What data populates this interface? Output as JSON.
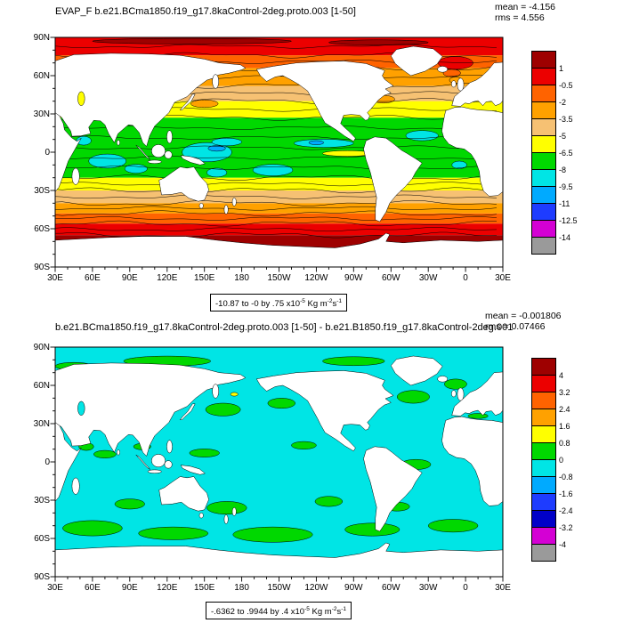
{
  "figure": {
    "background": "#ffffff"
  },
  "chart_data": [
    {
      "type": "filled_contour_map",
      "projection": "cylindrical_equidistant",
      "title": "EVAP_F b.e21.BCma1850.f19_g17.8kaControl-2deg.proto.003 [1-50]",
      "stats": {
        "mean": "mean = -4.156",
        "rms": "rms = 4.556"
      },
      "range_label": {
        "base": "-10.87 to -0 by .75 x10",
        "exp": "-5",
        "unit": " Kg m",
        "unit_exp": "-2",
        "unit2": "s",
        "unit2_exp": "-1"
      },
      "lat_ticks": [
        "90N",
        "60N",
        "30N",
        "0",
        "30S",
        "60S",
        "90S"
      ],
      "lon_ticks": [
        "30E",
        "60E",
        "90E",
        "120E",
        "150E",
        "180",
        "150W",
        "120W",
        "90W",
        "60W",
        "30W",
        "0",
        "30E"
      ],
      "colorbar": {
        "boundary_labels": [
          "1",
          "-0.5",
          "-2",
          "-3.5",
          "-5",
          "-6.5",
          "-8",
          "-9.5",
          "-11",
          "-12.5",
          "-14"
        ],
        "colors": [
          "#9e0000",
          "#ec0000",
          "#ff6300",
          "#ffa100",
          "#f6c173",
          "#ffff00",
          "#00d800",
          "#00e5e5",
          "#00aaff",
          "#1e3cff",
          "#d400d4",
          "#9a9a9a"
        ]
      },
      "field_approx": {
        "note": "zonal-band approximation of filled contours, units x10^-5 Kg m-2 s-1",
        "inland_sea_color": "#ffff00",
        "bands": [
          {
            "lat": [
              90,
              76
            ],
            "color": "#ec0000",
            "value": "-0.5 to 1"
          },
          {
            "lat": [
              76,
              66
            ],
            "color": "#ff6300",
            "value": "-2 to -0.5"
          },
          {
            "lat": [
              66,
              52
            ],
            "color": "#ffa100",
            "value": "-3.5 to -2"
          },
          {
            "lat": [
              52,
              40
            ],
            "color": "#f6c173",
            "value": "-5 to -3.5"
          },
          {
            "lat": [
              40,
              27
            ],
            "color": "#ffff00",
            "value": "-6.5 to -5"
          },
          {
            "lat": [
              27,
              -20
            ],
            "color": "#00d800",
            "value": "-8 to -6.5"
          },
          {
            "lat": [
              -20,
              -30
            ],
            "color": "#ffff00",
            "value": "-6.5 to -5"
          },
          {
            "lat": [
              -30,
              -40
            ],
            "color": "#f6c173",
            "value": "-5 to -3.5"
          },
          {
            "lat": [
              -40,
              -48
            ],
            "color": "#ffa100",
            "value": "-3.5 to -2"
          },
          {
            "lat": [
              -48,
              -56
            ],
            "color": "#ff6300",
            "value": "-2 to -0.5"
          },
          {
            "lat": [
              -56,
              -65
            ],
            "color": "#ec0000",
            "value": "-0.5 to 1"
          },
          {
            "lat": [
              -65,
              -90
            ],
            "color": "#9e0000",
            "value": "0 to 1"
          }
        ],
        "patches": [
          {
            "lon": 140,
            "lat": 87,
            "rlon": 80,
            "rlat": 2.2,
            "color": "#9e0000",
            "value": "0 to 1"
          },
          {
            "lon": 290,
            "lat": 86,
            "rlon": 40,
            "rlat": 2.0,
            "color": "#9e0000",
            "value": "0 to 1"
          },
          {
            "lon": 352,
            "lat": 70,
            "rlon": 14,
            "rlat": 5,
            "color": "#ec0000",
            "value": "-0.5 to 1"
          },
          {
            "lon": 349,
            "lat": 62,
            "rlon": 7,
            "rlat": 3,
            "color": "#ff6300",
            "value": "-2 to -0.5"
          },
          {
            "lon": 352,
            "lat": 56.5,
            "rlon": 5,
            "rlat": 2.5,
            "color": "#ffa100",
            "value": "-3.5 to -2"
          },
          {
            "lon": 150,
            "lat": 38,
            "rlon": 11,
            "rlat": 3,
            "color": "#ffa100",
            "value": "-3.5 to -2"
          },
          {
            "lon": 294,
            "lat": 41.5,
            "rlon": 9,
            "rlat": 3,
            "color": "#ffa100",
            "value": "-3.5 to -2"
          },
          {
            "lon": 152,
            "lat": 0,
            "rlon": 20,
            "rlat": 7.5,
            "color": "#00e5e5",
            "value": "-9.5 to -8"
          },
          {
            "lon": 168,
            "lat": 8,
            "rlon": 12,
            "rlat": 3,
            "color": "#00e5e5",
            "value": "-9.5 to -8"
          },
          {
            "lon": 72,
            "lat": -7,
            "rlon": 15,
            "rlat": 5.5,
            "color": "#00e5e5",
            "value": "-9.5 to -8"
          },
          {
            "lon": 95,
            "lat": -13,
            "rlon": 9,
            "rlat": 3.5,
            "color": "#00e5e5",
            "value": "-9.5 to -8"
          },
          {
            "lon": 53,
            "lat": 9,
            "rlon": 6,
            "rlat": 3.5,
            "color": "#00e5e5",
            "value": "-9.5 to -8"
          },
          {
            "lon": 246,
            "lat": 7,
            "rlon": 24,
            "rlat": 3.2,
            "color": "#00e5e5",
            "value": "-9.5 to -8"
          },
          {
            "lon": 325,
            "lat": 13,
            "rlon": 13,
            "rlat": 4,
            "color": "#00e5e5",
            "value": "-9.5 to -8"
          },
          {
            "lon": 205,
            "lat": -14,
            "rlon": 16,
            "rlat": 4.5,
            "color": "#00e5e5",
            "value": "-9.5 to -8"
          },
          {
            "lon": 160,
            "lat": -16,
            "rlon": 8,
            "rlat": 3.5,
            "color": "#00e5e5",
            "value": "-9.5 to -8"
          },
          {
            "lon": 355,
            "lat": -10,
            "rlon": 6,
            "rlat": 3,
            "color": "#00e5e5",
            "value": "-9.5 to -8"
          },
          {
            "lon": 160,
            "lat": 3,
            "rlon": 7,
            "rlat": 2.2,
            "color": "#00aaff",
            "value": "-11 to -9.5"
          },
          {
            "lon": 240,
            "lat": 7.5,
            "rlon": 6,
            "rlat": 1.6,
            "color": "#00aaff",
            "value": "-11 to -9.5"
          },
          {
            "lon": 265,
            "lat": -1,
            "rlon": 20,
            "rlat": 2.2,
            "color": "#ffff00",
            "value": "-6.5 to -5"
          }
        ]
      }
    },
    {
      "type": "filled_contour_map",
      "projection": "cylindrical_equidistant",
      "title": "b.e21.BCma1850.f19_g17.8kaControl-2deg.proto.003 [1-50] - b.e21.B1850.f19_g17.8kaControl-2deg.001",
      "stats": {
        "mean": "mean = -0.001806",
        "rms": "rms = 0.07466"
      },
      "range_label": {
        "base": "-.6362 to .9944 by .4 x10",
        "exp": "-5",
        "unit": " Kg m",
        "unit_exp": "-2",
        "unit2": "s",
        "unit2_exp": "-1"
      },
      "lat_ticks": [
        "90N",
        "60N",
        "30N",
        "0",
        "30S",
        "60S",
        "90S"
      ],
      "lon_ticks": [
        "30E",
        "60E",
        "90E",
        "120E",
        "150E",
        "180",
        "150W",
        "120W",
        "90W",
        "60W",
        "30W",
        "0",
        "30E"
      ],
      "colorbar": {
        "boundary_labels": [
          "4",
          "3.2",
          "2.4",
          "1.6",
          "0.8",
          "0",
          "-0.8",
          "-1.6",
          "-2.4",
          "-3.2",
          "-4"
        ],
        "colors": [
          "#9e0000",
          "#ec0000",
          "#ff6300",
          "#ffa100",
          "#ffff00",
          "#00d800",
          "#00e5e5",
          "#00aaff",
          "#1e3cff",
          "#0000c8",
          "#d400d4",
          "#9a9a9a"
        ]
      },
      "field_approx": {
        "note": "difference field is near zero everywhere: cyan base (-0.8 to 0) with green patches (0 to 0.8)",
        "inland_sea_color": "#00e5e5",
        "bands": [
          {
            "lat": [
              90,
              -90
            ],
            "color": "#00e5e5",
            "value": "-0.8 to 0"
          }
        ],
        "patches": [
          {
            "lon": 60,
            "lat": -52,
            "rlon": 24,
            "rlat": 6,
            "color": "#00d800",
            "value": "0 to 0.8"
          },
          {
            "lon": 125,
            "lat": -56,
            "rlon": 28,
            "rlat": 5,
            "color": "#00d800",
            "value": "0 to 0.8"
          },
          {
            "lon": 205,
            "lat": -57,
            "rlon": 32,
            "rlat": 6,
            "color": "#00d800",
            "value": "0 to 0.8"
          },
          {
            "lon": 285,
            "lat": -53,
            "rlon": 22,
            "rlat": 5,
            "color": "#00d800",
            "value": "0 to 0.8"
          },
          {
            "lon": 350,
            "lat": -50,
            "rlon": 20,
            "rlat": 5,
            "color": "#00d800",
            "value": "0 to 0.8"
          },
          {
            "lon": 90,
            "lat": -33,
            "rlon": 12,
            "rlat": 4,
            "color": "#00d800",
            "value": "0 to 0.8"
          },
          {
            "lon": 168,
            "lat": -36,
            "rlon": 16,
            "rlat": 5,
            "color": "#00d800",
            "value": "0 to 0.8"
          },
          {
            "lon": 250,
            "lat": -31,
            "rlon": 11,
            "rlat": 4,
            "color": "#00d800",
            "value": "0 to 0.8"
          },
          {
            "lon": 305,
            "lat": -35,
            "rlon": 10,
            "rlat": 3.5,
            "color": "#00d800",
            "value": "0 to 0.8"
          },
          {
            "lon": 150,
            "lat": 7,
            "rlon": 12,
            "rlat": 3.2,
            "color": "#00d800",
            "value": "0 to 0.8"
          },
          {
            "lon": 230,
            "lat": 13,
            "rlon": 10,
            "rlat": 3,
            "color": "#00d800",
            "value": "0 to 0.8"
          },
          {
            "lon": 320,
            "lat": -2,
            "rlon": 12,
            "rlat": 4,
            "color": "#00d800",
            "value": "0 to 0.8"
          },
          {
            "lon": 70,
            "lat": 6,
            "rlon": 9,
            "rlat": 3,
            "color": "#00d800",
            "value": "0 to 0.8"
          },
          {
            "lon": 100,
            "lat": 12,
            "rlon": 7,
            "rlat": 2.5,
            "color": "#00d800",
            "value": "0 to 0.8"
          },
          {
            "lon": 55,
            "lat": 12,
            "rlon": 6,
            "rlat": 3,
            "color": "#00d800",
            "value": "0 to 0.8"
          },
          {
            "lon": 165,
            "lat": 41,
            "rlon": 14,
            "rlat": 5,
            "color": "#00d800",
            "value": "0 to 0.8"
          },
          {
            "lon": 212,
            "lat": 46,
            "rlon": 11,
            "rlat": 4,
            "color": "#00d800",
            "value": "0 to 0.8"
          },
          {
            "lon": 318,
            "lat": 51,
            "rlon": 13,
            "rlat": 5,
            "color": "#00d800",
            "value": "0 to 0.8"
          },
          {
            "lon": 352,
            "lat": 61,
            "rlon": 9,
            "rlat": 4,
            "color": "#00d800",
            "value": "0 to 0.8"
          },
          {
            "lon": 370,
            "lat": 36,
            "rlon": 8,
            "rlat": 2,
            "color": "#00d800",
            "value": "0 to 0.8"
          },
          {
            "lon": 120,
            "lat": 79,
            "rlon": 35,
            "rlat": 4,
            "color": "#00d800",
            "value": "0 to 0.8"
          },
          {
            "lon": 270,
            "lat": 79,
            "rlon": 25,
            "rlat": 3.5,
            "color": "#00d800",
            "value": "0 to 0.8"
          },
          {
            "lon": 45,
            "lat": 75,
            "rlon": 15,
            "rlat": 3,
            "color": "#00d800",
            "value": "0 to 0.8"
          },
          {
            "lon": 174,
            "lat": 53,
            "rlon": 3,
            "rlat": 1.5,
            "color": "#ffff00",
            "value": "0.8 to 1.6"
          }
        ]
      }
    }
  ]
}
